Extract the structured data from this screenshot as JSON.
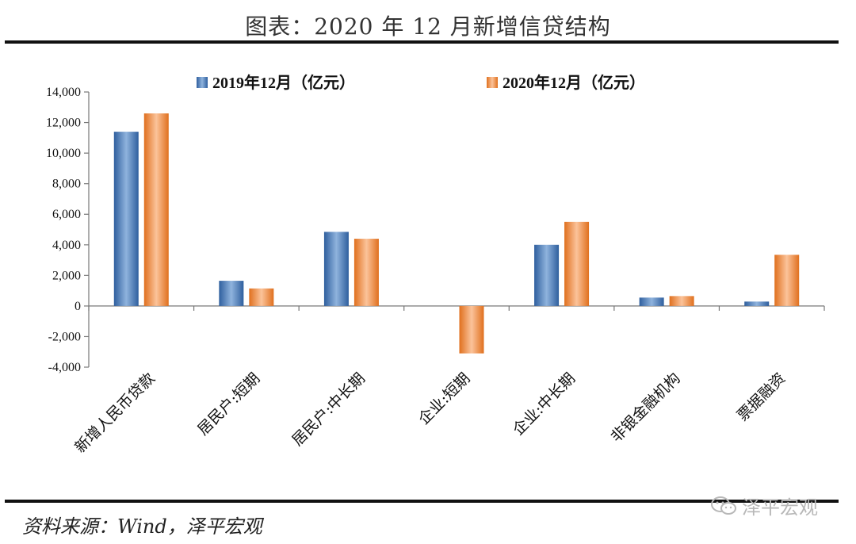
{
  "header": {
    "title": "图表：2020 年 12 月新增信贷结构"
  },
  "footer": {
    "source": "资料来源：Wind，泽平宏观",
    "watermark": "泽平宏观",
    "watermark_icon": "wechat-icon"
  },
  "colors": {
    "s2019": "#4a7ebb",
    "s2020": "#f08a3c"
  },
  "chart_data": {
    "type": "bar",
    "title": "",
    "xlabel": "",
    "ylabel": "",
    "ylim": [
      -4000,
      14000
    ],
    "yticks": [
      14000,
      12000,
      10000,
      8000,
      6000,
      4000,
      2000,
      0,
      -2000,
      -4000
    ],
    "ytick_labels": [
      "14,000",
      "12,000",
      "10,000",
      "8,000",
      "6,000",
      "4,000",
      "2,000",
      "0",
      "-2,000",
      "-4,000"
    ],
    "legend_position": "top",
    "grid": false,
    "categories": [
      "新增人民币贷款",
      "居民户:短期",
      "居民户:中长期",
      "企业:短期",
      "企业:中长期",
      "非银金融机构",
      "票据融资"
    ],
    "series": [
      {
        "name": "2019年12月（亿元）",
        "values": [
          11400,
          1650,
          4850,
          0,
          4000,
          550,
          290
        ]
      },
      {
        "name": "2020年12月（亿元）",
        "values": [
          12600,
          1150,
          4400,
          -3100,
          5500,
          650,
          3350
        ]
      }
    ]
  }
}
